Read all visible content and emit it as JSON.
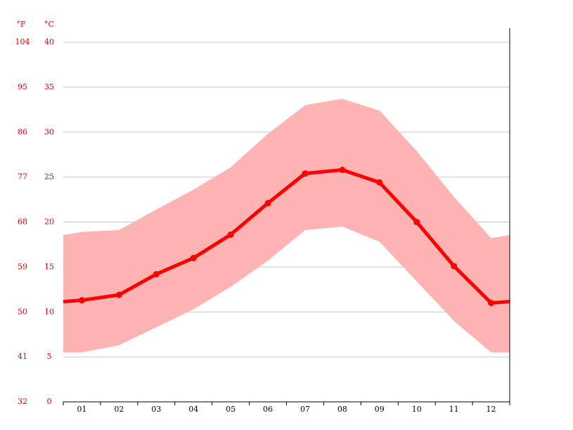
{
  "chart_data": {
    "type": "band-line",
    "y_unit": "°C",
    "y2_unit": "°F",
    "categories": [
      "01",
      "02",
      "03",
      "04",
      "05",
      "06",
      "07",
      "08",
      "09",
      "10",
      "11",
      "12"
    ],
    "values": [
      11.3,
      11.9,
      14.2,
      16.0,
      18.6,
      22.1,
      25.4,
      25.8,
      24.4,
      20.0,
      15.1,
      11.0
    ],
    "band_high": [
      18.9,
      19.1,
      21.4,
      23.6,
      26.1,
      29.8,
      33.0,
      33.7,
      32.4,
      27.9,
      22.8,
      18.2
    ],
    "band_low": [
      5.5,
      6.3,
      8.3,
      10.3,
      12.8,
      15.7,
      19.1,
      19.5,
      17.8,
      13.4,
      9.0,
      5.5
    ],
    "line_color": "#ff0000",
    "band_color": "#ffb3b3",
    "ylim": [
      0,
      40
    ],
    "yticks": [
      0,
      5,
      10,
      15,
      20,
      25,
      30,
      35,
      40
    ],
    "y2lim": [
      32,
      104
    ],
    "y2ticks": [
      32,
      41,
      50,
      59,
      68,
      77,
      86,
      95,
      104
    ],
    "grid": true
  }
}
